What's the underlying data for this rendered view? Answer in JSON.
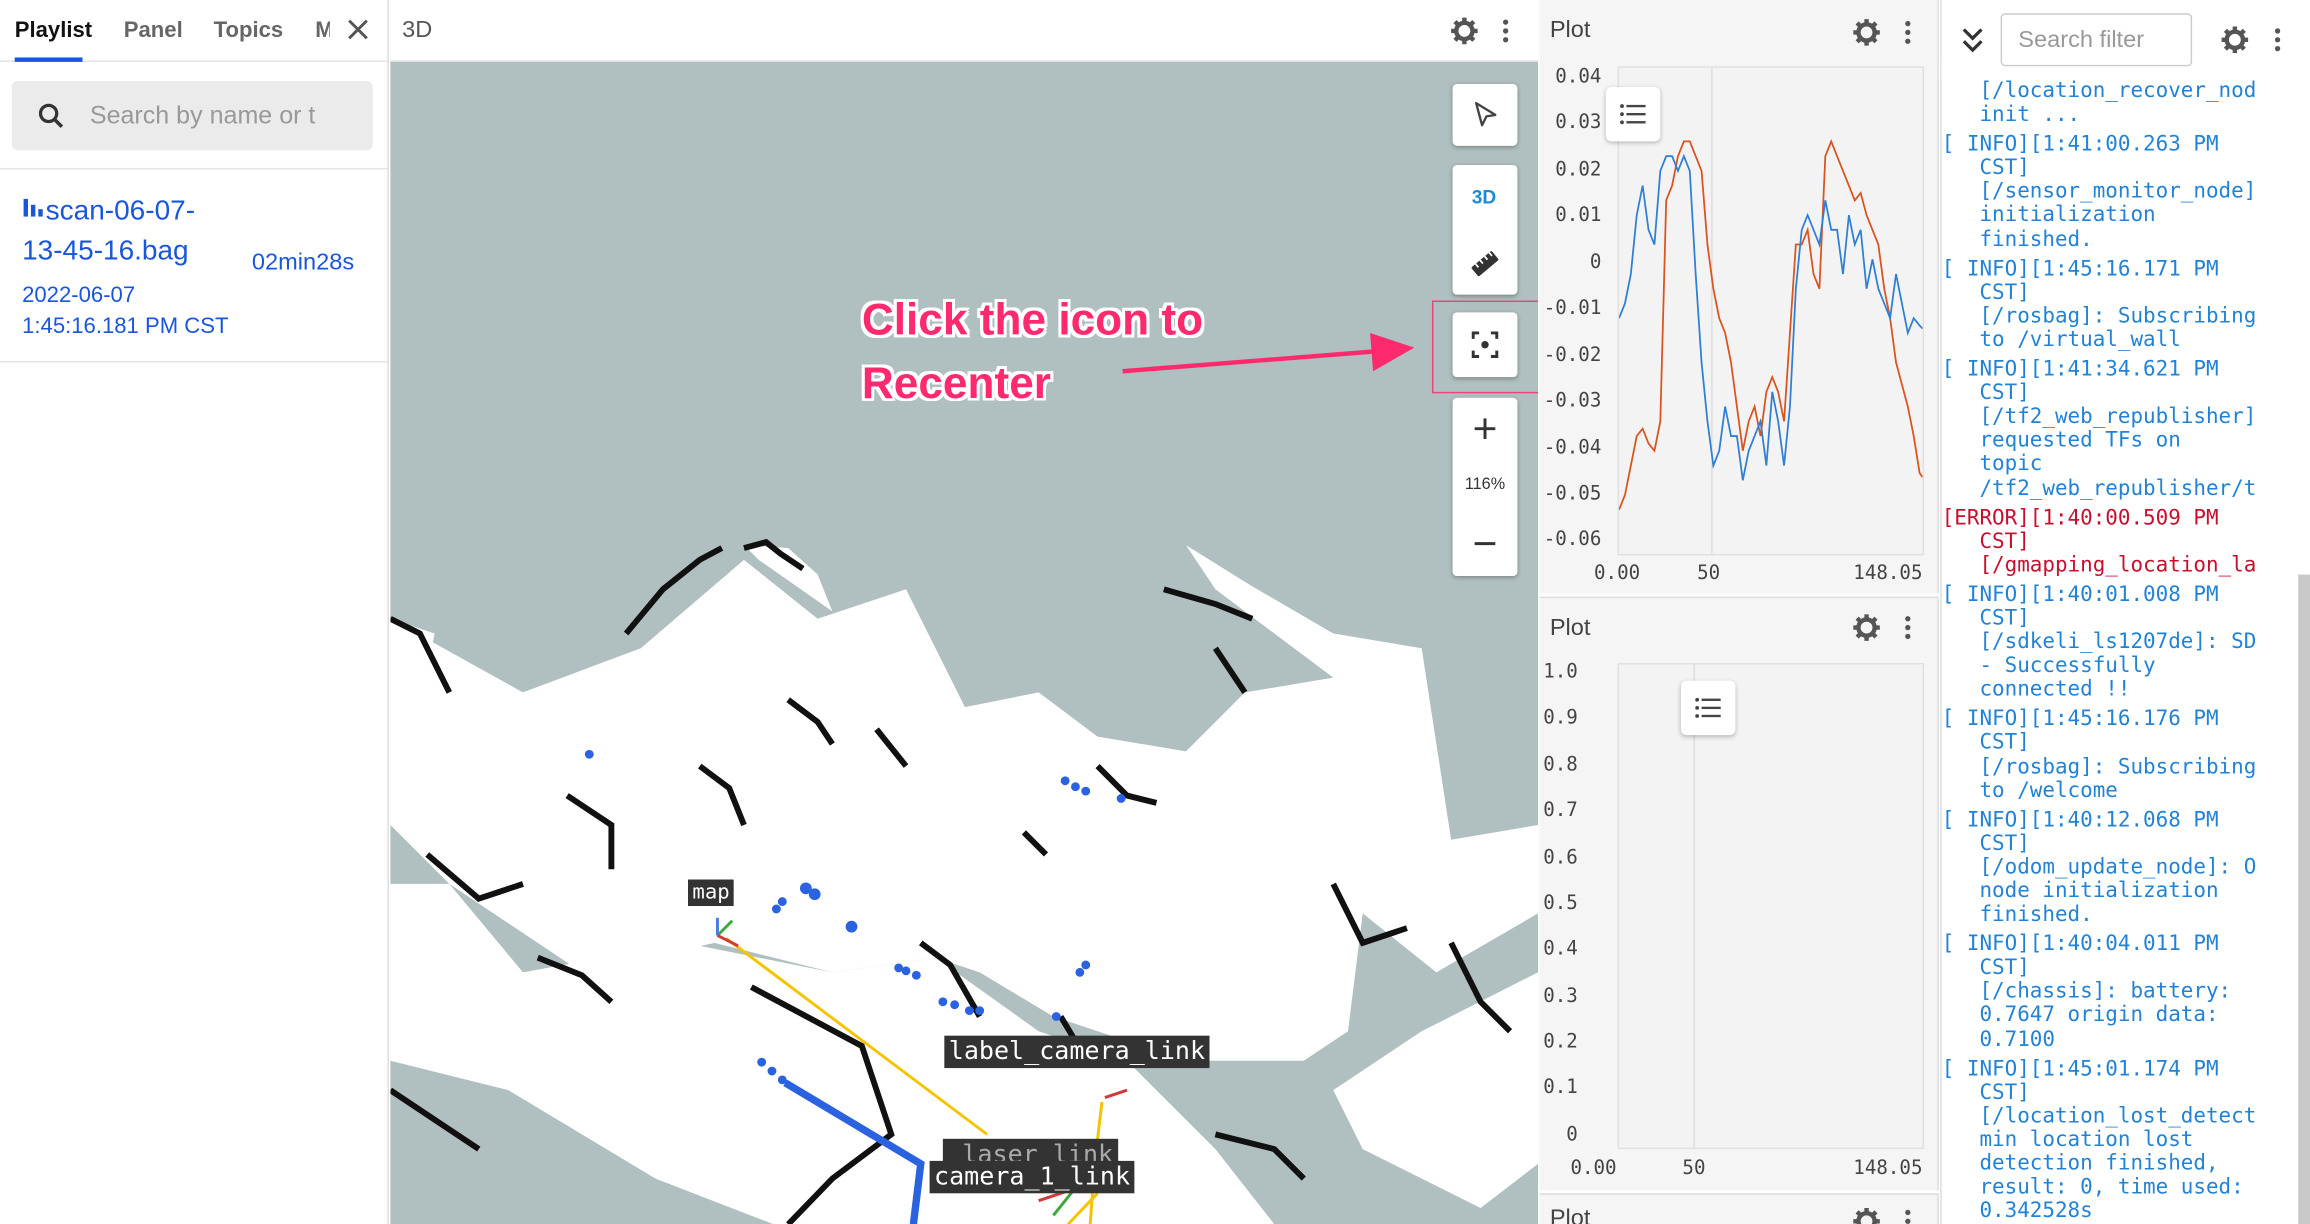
{
  "sidebar": {
    "tabs": [
      "Playlist",
      "Panel",
      "Topics",
      "M"
    ],
    "search_placeholder": "Search by name or t",
    "bag": {
      "name_line1": "scan-06-07-",
      "name_line2": "13-45-16.bag",
      "date_line1": "2022-06-07",
      "date_line2": "1:45:16.181 PM CST",
      "duration": "02min28s"
    }
  },
  "panel3d": {
    "title": "3D",
    "view_mode": "3D",
    "zoom": "116%",
    "annotation_line1": "Click the icon to",
    "annotation_line2": "Recenter",
    "labels": {
      "map": "map",
      "label_camera_link": "label_camera_link",
      "camera_1_link": "camera_1_link",
      "laser_link": "_laser_link"
    }
  },
  "plot1": {
    "title": "Plot",
    "y_ticks": [
      "0.04",
      "0.03",
      "0.02",
      "0.01",
      "0",
      "-0.01",
      "-0.02",
      "-0.03",
      "-0.04",
      "-0.05",
      "-0.06"
    ],
    "x_ticks": [
      "0.00",
      "50",
      "148.05"
    ]
  },
  "plot2": {
    "title": "Plot",
    "y_ticks": [
      "1.0",
      "0.9",
      "0.8",
      "0.7",
      "0.6",
      "0.5",
      "0.4",
      "0.3",
      "0.2",
      "0.1",
      "0"
    ],
    "x_ticks": [
      "0.00",
      "50",
      "148.05"
    ]
  },
  "plot3": {
    "title": "Plot"
  },
  "log": {
    "filter_placeholder": "Search filter",
    "entries": [
      {
        "level": "info",
        "text": "   [/location_recover_nod\n   init ..."
      },
      {
        "level": "info",
        "text": "[ INFO][1:41:00.263 PM\n   CST]\n   [/sensor_monitor_node]\n   initialization\n   finished."
      },
      {
        "level": "info",
        "text": "[ INFO][1:45:16.171 PM\n   CST]\n   [/rosbag]: Subscribing\n   to /virtual_wall"
      },
      {
        "level": "info",
        "text": "[ INFO][1:41:34.621 PM\n   CST]\n   [/tf2_web_republisher]\n   requested TFs on\n   topic\n   /tf2_web_republisher/t"
      },
      {
        "level": "error",
        "text": "[ERROR][1:40:00.509 PM\n   CST]\n   [/gmapping_location_la"
      },
      {
        "level": "info",
        "text": "[ INFO][1:40:01.008 PM\n   CST]\n   [/sdkeli_ls1207de]: SD\n   - Successfully\n   connected !!"
      },
      {
        "level": "info",
        "text": "[ INFO][1:45:16.176 PM\n   CST]\n   [/rosbag]: Subscribing\n   to /welcome"
      },
      {
        "level": "info",
        "text": "[ INFO][1:40:12.068 PM\n   CST]\n   [/odom_update_node]: O\n   node initialization\n   finished."
      },
      {
        "level": "info",
        "text": "[ INFO][1:40:04.011 PM\n   CST]\n   [/chassis]: battery:\n   0.7647 origin data:\n   0.7100"
      },
      {
        "level": "info",
        "text": "[ INFO][1:45:01.174 PM\n   CST]\n   [/location_lost_detect\n   min location lost\n   detection finished,\n   result: 0, time used:\n   0.342528s"
      }
    ]
  },
  "colors": {
    "accent": "#1a56db",
    "annotation": "#ff2a6d",
    "info": "#2283d6",
    "error": "#c8102e"
  }
}
